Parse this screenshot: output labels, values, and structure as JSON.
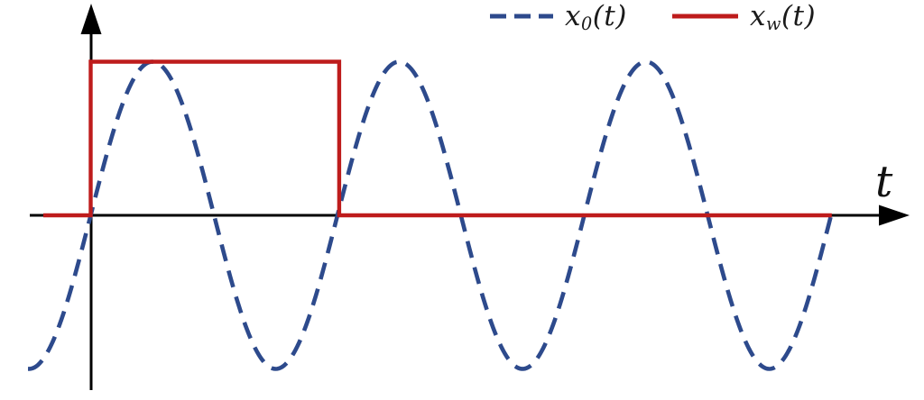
{
  "figure": {
    "background": "#ffffff"
  },
  "axes": {
    "color": "#000000",
    "x_label": "t"
  },
  "chart_data": {
    "type": "line",
    "title": "",
    "xlabel": "t",
    "ylabel": "",
    "grid": false,
    "legend_position": "top-right",
    "x_axis": {
      "arrow": true,
      "ticks": [],
      "tick_labels": []
    },
    "y_axis": {
      "arrow": true,
      "ticks": [],
      "tick_labels": []
    },
    "series": [
      {
        "name": "x_0(t)",
        "legend": {
          "base": "x",
          "sub": "0",
          "args": "(t)"
        },
        "kind": "sine",
        "expression": "sin(2*pi*t/period)",
        "amplitude": 1,
        "period": 1,
        "phase": 0,
        "t_range": [
          -0.254,
          3.0
        ],
        "color": "#2d4a8c",
        "line_style": "dashed"
      },
      {
        "name": "x_w(t)",
        "legend": {
          "base": "x",
          "sub": "w",
          "args": "(t)"
        },
        "kind": "rectangular-window",
        "high": 1,
        "low": 0,
        "window_t": [
          0,
          1.007
        ],
        "t_range": [
          -0.192,
          3.003
        ],
        "color": "#be1c1c",
        "line_style": "solid"
      }
    ]
  }
}
